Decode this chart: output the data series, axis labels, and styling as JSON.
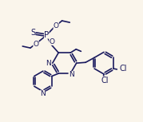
{
  "background_color": "#faf5eb",
  "line_color": "#1a1a5e",
  "line_width": 1.2,
  "font_size": 6.5,
  "figsize": [
    1.79,
    1.53
  ],
  "dpi": 100,
  "xlim": [
    0,
    10
  ],
  "ylim": [
    0,
    8.5
  ]
}
